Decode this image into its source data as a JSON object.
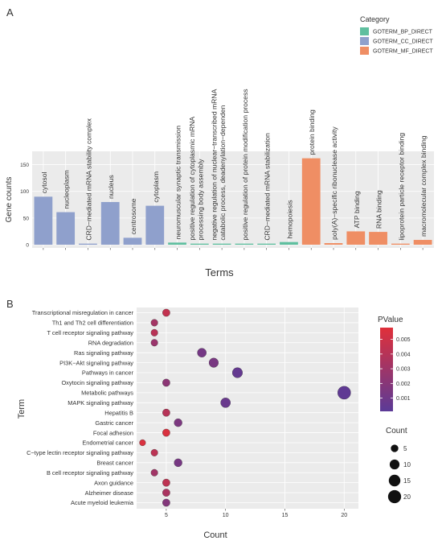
{
  "panels": {
    "a": {
      "label": "A"
    },
    "b": {
      "label": "B"
    }
  },
  "chart_data": [
    {
      "type": "bar",
      "xlabel": "Terms",
      "ylabel": "Gene counts",
      "ylim": [
        0,
        175
      ],
      "yticks": [
        0,
        50,
        100,
        150
      ],
      "grid": true,
      "legend": {
        "title": "Category",
        "position": "top-right",
        "entries": [
          {
            "name": "GOTERM_BP_DIRECT",
            "color": "#5fbf9f"
          },
          {
            "name": "GOTERM_CC_DIRECT",
            "color": "#8fa0cc"
          },
          {
            "name": "GOTERM_MF_DIRECT",
            "color": "#ef8e64"
          }
        ]
      },
      "categories": [
        "cytosol",
        "nucleoplasm",
        "CRD−mediated mRNA stability complex",
        "nucleus",
        "centrosome",
        "cytoplasm",
        "neuromuscular synaptic transmission",
        "positive regulation of cytoplasmic mRNA processing body assembly",
        "negative regulation of nuclear−transcribed mRNA catabolic process, deadenylation−dependen",
        "positive regulation of protein modification process",
        "CRD−mediated mRNA stabilization",
        "hemopoiesis",
        "protein binding",
        "poly(A)−specific ribonuclease activity",
        "ATP binding",
        "RNA binding",
        "lipoprotein particle receptor binding",
        "macromolecular complex binding"
      ],
      "category_labels": [
        [
          "cytosol"
        ],
        [
          "nucleoplasm"
        ],
        [
          "CRD−mediated mRNA stability complex"
        ],
        [
          "nucleus"
        ],
        [
          "centrosome"
        ],
        [
          "cytoplasm"
        ],
        [
          "neuromuscular synaptic transmission"
        ],
        [
          "positive regulation of cytoplasmic mRNA",
          "processing body assembly"
        ],
        [
          "negative regulation of nuclear−transcribed mRNA",
          "catabolic process, deadenylation−dependen"
        ],
        [
          "positive regulation of protein modification process"
        ],
        [
          "CRD−mediated mRNA stabilization"
        ],
        [
          "hemopoiesis"
        ],
        [
          "protein binding"
        ],
        [
          "poly(A)−specific ribonuclease activity"
        ],
        [
          "ATP binding"
        ],
        [
          "RNA binding"
        ],
        [
          "lipoprotein particle receptor binding"
        ],
        [
          "macromolecular complex binding"
        ]
      ],
      "category_group": [
        "CC",
        "CC",
        "CC",
        "CC",
        "CC",
        "CC",
        "BP",
        "BP",
        "BP",
        "BP",
        "BP",
        "BP",
        "MF",
        "MF",
        "MF",
        "MF",
        "MF",
        "MF"
      ],
      "values": [
        90,
        61,
        2,
        80,
        13,
        73,
        4,
        2,
        2,
        2,
        2,
        5,
        162,
        3,
        25,
        24,
        2,
        9
      ],
      "colors": {
        "BP": "#5fbf9f",
        "CC": "#8fa0cc",
        "MF": "#ef8e64"
      }
    },
    {
      "type": "scatter",
      "xlabel": "Count",
      "ylabel": "Term",
      "xlim": [
        2.5,
        21.2
      ],
      "xticks": [
        5,
        10,
        15,
        20
      ],
      "grid": true,
      "terms": [
        "Transcriptional misregulation in cancer",
        "Th1 and Th2 cell differentiation",
        "T cell receptor signaling pathway",
        "RNA degradation",
        "Ras signaling pathway",
        "PI3K−Akt signaling pathway",
        "Pathways in cancer",
        "Oxytocin signaling pathway",
        "Metabolic pathways",
        "MAPK signaling pathway",
        "Hepatitis B",
        "Gastric cancer",
        "Focal adhesion",
        "Endometrial cancer",
        "C−type lectin receptor signaling pathway",
        "Breast cancer",
        "B cell receptor signaling pathway",
        "Axon guidance",
        "Alzheimer disease",
        "Acute myeloid leukemia"
      ],
      "x": [
        5,
        4,
        4,
        4,
        8,
        9,
        11,
        5,
        20,
        10,
        5,
        6,
        5,
        3,
        4,
        6,
        4,
        5,
        5,
        5
      ],
      "pvalue": [
        0.0045,
        0.0032,
        0.0041,
        0.0028,
        0.0012,
        0.0014,
        0.0005,
        0.0022,
        0.0003,
        0.0007,
        0.004,
        0.0015,
        0.0055,
        0.0055,
        0.0042,
        0.0013,
        0.0031,
        0.0043,
        0.0035,
        0.0018
      ],
      "color_legend": {
        "title": "PValue",
        "ticks": [
          "0.005",
          "0.004",
          "0.003",
          "0.002",
          "0.001"
        ],
        "tick_values": [
          0.005,
          0.004,
          0.003,
          0.002,
          0.001
        ],
        "range": [
          0.0001,
          0.0058
        ],
        "low_color": "#5b3a97",
        "high_color": "#e0303a"
      },
      "size_legend": {
        "title": "Count",
        "values": [
          5,
          10,
          15,
          20
        ],
        "labels": [
          "5",
          "10",
          "15",
          "20"
        ]
      }
    }
  ]
}
